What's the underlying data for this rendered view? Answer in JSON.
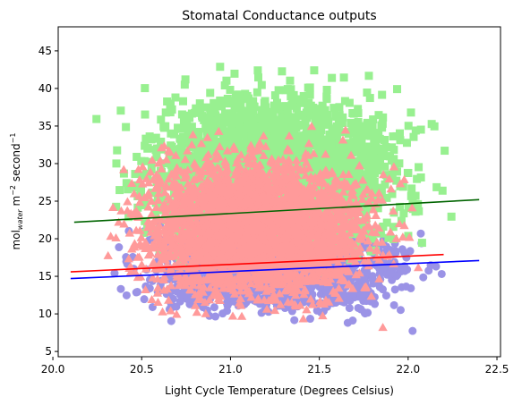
{
  "chart_data": {
    "type": "scatter",
    "title": "Stomatal Conductance outputs",
    "xlabel": "Light Cycle Temperature (Degrees Celsius)",
    "ylabel": {
      "prefix": "mol",
      "subscript": "water",
      "units": " m",
      "exp1": "−2",
      "mid": " second",
      "exp2": "−1"
    },
    "xlim": [
      20.03,
      22.52
    ],
    "ylim": [
      4.3,
      48.2
    ],
    "xticks": [
      "20.0",
      "20.5",
      "21.0",
      "21.5",
      "22.0",
      "22.5"
    ],
    "yticks": [
      "5",
      "10",
      "15",
      "20",
      "25",
      "30",
      "35",
      "40",
      "45"
    ],
    "grid": false,
    "legend": "none",
    "series": [
      {
        "marker": "circle",
        "color": "#9b93e6",
        "x_range": [
          20.1,
          22.4
        ],
        "y_range": [
          6.5,
          26
        ],
        "count": 1600,
        "trend": {
          "x": [
            20.1,
            22.4
          ],
          "y": [
            14.7,
            17.1
          ],
          "color": "#0000ff"
        }
      },
      {
        "marker": "square",
        "color": "#98f090",
        "x_range": [
          20.1,
          22.4
        ],
        "y_range": [
          12,
          46
        ],
        "count": 2600,
        "trend": {
          "x": [
            20.12,
            22.4
          ],
          "y": [
            22.2,
            25.2
          ],
          "color": "#006400"
        }
      },
      {
        "marker": "triangle",
        "color": "#ff9a9a",
        "x_range": [
          20.1,
          22.2
        ],
        "y_range": [
          6.2,
          37
        ],
        "count": 3200,
        "trend": {
          "x": [
            20.1,
            22.2
          ],
          "y": [
            15.6,
            17.9
          ],
          "color": "#ff0000"
        }
      }
    ]
  }
}
